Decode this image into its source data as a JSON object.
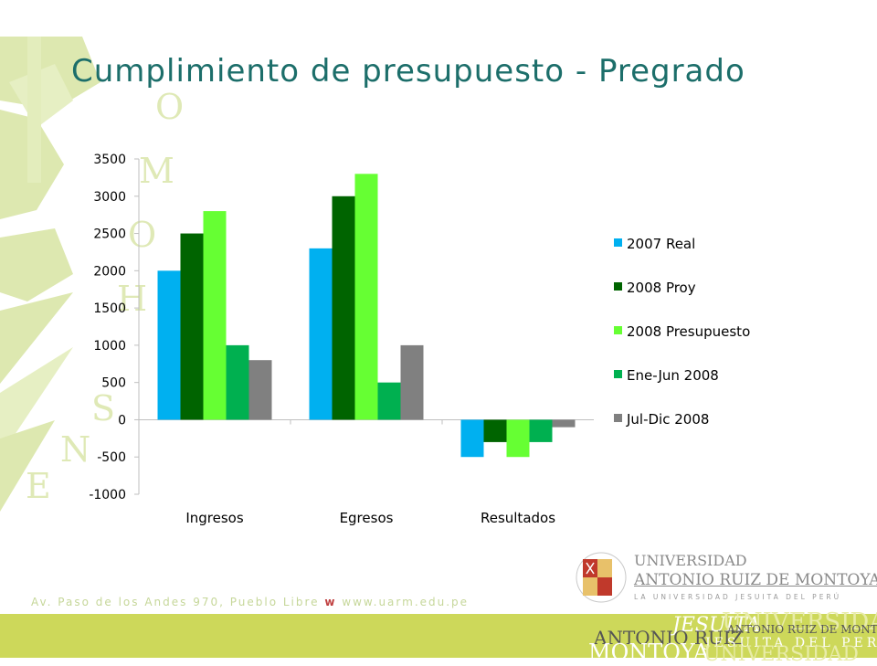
{
  "slide": {
    "title": "Cumplimiento de presupuesto - Pregrado",
    "footer_address": "Av. Paso de los Andes 970, Pueblo Libre",
    "footer_w": "w",
    "footer_url": "www.uarm.edu.pe",
    "logo": {
      "line1": "UNIVERSIDAD",
      "line2": "ANTONIO RUIZ DE MONTOYA",
      "line3": "LA UNIVERSIDAD JESUITA DEL PERÚ",
      "band_words": [
        "JESUITA",
        "UNIVERSIDAD",
        "ANTONIO RUIZ DE MONTOYA",
        "ANTONIO RUIZ",
        "JESUITA DEL PERÚ",
        "MONTOYA",
        "UNIVERSIDAD"
      ]
    },
    "background_letters": "HOMO ENSHOM",
    "colors": {
      "title": "#1c6e6a",
      "background_art": "#dde8b0",
      "footer_band": "#cdd85a"
    }
  },
  "chart_data": {
    "type": "bar",
    "title": "",
    "xlabel": "",
    "ylabel": "",
    "ylim": [
      -1000,
      3500
    ],
    "yticks": [
      3500,
      3000,
      2500,
      2000,
      1500,
      1000,
      500,
      0,
      -500,
      -1000
    ],
    "categories": [
      "Ingresos",
      "Egresos",
      "Resultados"
    ],
    "legend_position": "right",
    "grid": false,
    "series": [
      {
        "name": "2007 Real",
        "color": "#00b0f0",
        "values": [
          2000,
          2300,
          -500
        ]
      },
      {
        "name": "2008 Proy",
        "color": "#006400",
        "values": [
          2500,
          3000,
          -300
        ]
      },
      {
        "name": "2008 Presupuesto",
        "color": "#66ff33",
        "values": [
          2800,
          3300,
          -500
        ]
      },
      {
        "name": "Ene-Jun 2008",
        "color": "#00b050",
        "values": [
          1000,
          500,
          -300
        ]
      },
      {
        "name": "Jul-Dic 2008",
        "color": "#808080",
        "values": [
          800,
          1000,
          -100
        ]
      }
    ]
  }
}
